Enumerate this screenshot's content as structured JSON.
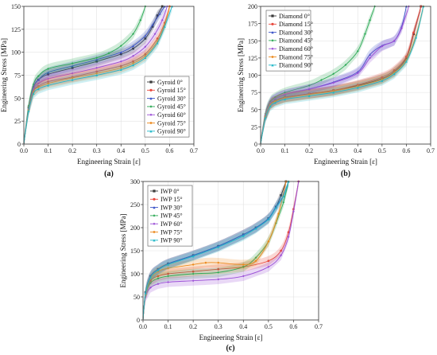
{
  "colors": [
    "#3a3a3a",
    "#e8473c",
    "#3c55c8",
    "#2eaa57",
    "#9b4fd6",
    "#ec8a1e",
    "#21b8c8"
  ],
  "chart_data": [
    {
      "type": "line",
      "panel_label": "(a)",
      "xlabel": "Engineering Strain [ε]",
      "ylabel": "Engineering Stress [MPa]",
      "xlim": [
        0,
        0.7
      ],
      "ylim": [
        0,
        150
      ],
      "xticks": [
        "0.0",
        "0.1",
        "0.2",
        "0.3",
        "0.4",
        "0.5",
        "0.6",
        "0.7"
      ],
      "yticks": [
        "0",
        "25",
        "50",
        "75",
        "100",
        "125",
        "150"
      ],
      "legend_position": "right",
      "series": [
        {
          "name": "Gyroid 0°",
          "x": [
            0,
            0.02,
            0.04,
            0.06,
            0.1,
            0.2,
            0.3,
            0.4,
            0.45,
            0.5,
            0.53,
            0.55,
            0.57
          ],
          "y": [
            0,
            40,
            62,
            70,
            76,
            83,
            90,
            98,
            104,
            115,
            128,
            140,
            150
          ]
        },
        {
          "name": "Gyroid 15°",
          "x": [
            0,
            0.02,
            0.04,
            0.06,
            0.1,
            0.2,
            0.3,
            0.4,
            0.45,
            0.5,
            0.55,
            0.58,
            0.6
          ],
          "y": [
            0,
            38,
            58,
            63,
            68,
            73,
            79,
            85,
            90,
            98,
            115,
            132,
            150
          ]
        },
        {
          "name": "Gyroid 30°",
          "x": [
            0,
            0.02,
            0.04,
            0.06,
            0.1,
            0.2,
            0.3,
            0.4,
            0.45,
            0.5,
            0.53,
            0.56,
            0.58
          ],
          "y": [
            0,
            40,
            62,
            70,
            78,
            85,
            92,
            100,
            107,
            118,
            130,
            142,
            150
          ]
        },
        {
          "name": "Gyroid 45°",
          "x": [
            0,
            0.02,
            0.04,
            0.06,
            0.1,
            0.2,
            0.3,
            0.35,
            0.4,
            0.45,
            0.48,
            0.5
          ],
          "y": [
            0,
            42,
            65,
            74,
            82,
            88,
            94,
            99,
            107,
            120,
            135,
            150
          ]
        },
        {
          "name": "Gyroid 60°",
          "x": [
            0,
            0.02,
            0.04,
            0.06,
            0.1,
            0.2,
            0.3,
            0.4,
            0.45,
            0.5,
            0.54,
            0.57,
            0.59
          ],
          "y": [
            0,
            38,
            60,
            66,
            71,
            77,
            83,
            90,
            96,
            106,
            120,
            135,
            150
          ]
        },
        {
          "name": "Gyroid 75°",
          "x": [
            0,
            0.02,
            0.04,
            0.06,
            0.1,
            0.2,
            0.3,
            0.4,
            0.45,
            0.5,
            0.55,
            0.58,
            0.6
          ],
          "y": [
            0,
            37,
            57,
            62,
            66,
            72,
            77,
            83,
            88,
            96,
            112,
            130,
            150
          ]
        },
        {
          "name": "Gyroid 90°",
          "x": [
            0,
            0.02,
            0.04,
            0.06,
            0.1,
            0.2,
            0.3,
            0.4,
            0.45,
            0.5,
            0.55,
            0.58,
            0.61
          ],
          "y": [
            0,
            36,
            55,
            60,
            64,
            70,
            75,
            81,
            86,
            94,
            110,
            128,
            150
          ]
        }
      ]
    },
    {
      "type": "line",
      "panel_label": "(b)",
      "xlabel": "Engineering Strain [ε]",
      "ylabel": "Engineering Stress [MPa]",
      "xlim": [
        0,
        0.7
      ],
      "ylim": [
        0,
        200
      ],
      "xticks": [
        "0.0",
        "0.1",
        "0.2",
        "0.3",
        "0.4",
        "0.5",
        "0.6",
        "0.7"
      ],
      "yticks": [
        "0",
        "25",
        "50",
        "75",
        "100",
        "125",
        "150",
        "175",
        "200"
      ],
      "legend_position": "top-left",
      "series": [
        {
          "name": "Diamond 0°",
          "x": [
            0,
            0.02,
            0.04,
            0.06,
            0.1,
            0.2,
            0.3,
            0.4,
            0.5,
            0.55,
            0.6,
            0.63,
            0.66
          ],
          "y": [
            0,
            40,
            58,
            63,
            68,
            73,
            78,
            85,
            95,
            105,
            125,
            160,
            200
          ]
        },
        {
          "name": "Diamond 15°",
          "x": [
            0,
            0.02,
            0.04,
            0.06,
            0.1,
            0.2,
            0.3,
            0.4,
            0.5,
            0.55,
            0.6,
            0.63,
            0.66
          ],
          "y": [
            0,
            40,
            58,
            63,
            68,
            73,
            78,
            86,
            97,
            107,
            127,
            162,
            200
          ]
        },
        {
          "name": "Diamond 30°",
          "x": [
            0,
            0.02,
            0.04,
            0.06,
            0.1,
            0.2,
            0.3,
            0.4,
            0.45,
            0.5,
            0.55,
            0.58,
            0.6
          ],
          "y": [
            0,
            42,
            60,
            66,
            72,
            80,
            90,
            105,
            130,
            143,
            150,
            170,
            200
          ]
        },
        {
          "name": "Diamond 45°",
          "x": [
            0,
            0.02,
            0.04,
            0.06,
            0.1,
            0.2,
            0.25,
            0.3,
            0.35,
            0.4,
            0.43,
            0.45,
            0.47
          ],
          "y": [
            0,
            44,
            62,
            68,
            75,
            85,
            93,
            102,
            115,
            135,
            160,
            180,
            200
          ]
        },
        {
          "name": "Diamond 60°",
          "x": [
            0,
            0.02,
            0.04,
            0.06,
            0.1,
            0.2,
            0.3,
            0.4,
            0.45,
            0.5,
            0.55,
            0.58,
            0.61
          ],
          "y": [
            0,
            42,
            60,
            66,
            72,
            80,
            89,
            103,
            125,
            142,
            150,
            168,
            200
          ]
        },
        {
          "name": "Diamond 75°",
          "x": [
            0,
            0.02,
            0.04,
            0.06,
            0.1,
            0.2,
            0.3,
            0.4,
            0.5,
            0.55,
            0.6,
            0.64,
            0.67
          ],
          "y": [
            0,
            40,
            57,
            62,
            67,
            72,
            77,
            84,
            94,
            104,
            122,
            158,
            200
          ]
        },
        {
          "name": "Diamond 90°",
          "x": [
            0,
            0.02,
            0.04,
            0.06,
            0.1,
            0.2,
            0.3,
            0.4,
            0.5,
            0.55,
            0.6,
            0.64,
            0.67
          ],
          "y": [
            0,
            38,
            55,
            60,
            65,
            70,
            75,
            82,
            92,
            102,
            120,
            155,
            200
          ]
        }
      ]
    },
    {
      "type": "line",
      "panel_label": "(c)",
      "xlabel": "Engineering Strain [ε]",
      "ylabel": "Engineering Stress [MPa]",
      "xlim": [
        0,
        0.7
      ],
      "ylim": [
        0,
        300
      ],
      "xticks": [
        "0.0",
        "0.1",
        "0.2",
        "0.3",
        "0.4",
        "0.5",
        "0.6",
        "0.7"
      ],
      "yticks": [
        "0",
        "50",
        "100",
        "150",
        "200",
        "250",
        "300"
      ],
      "legend_position": "top-left",
      "series": [
        {
          "name": "IWP 0°",
          "x": [
            0,
            0.01,
            0.03,
            0.06,
            0.1,
            0.2,
            0.3,
            0.4,
            0.45,
            0.5,
            0.53,
            0.55,
            0.57
          ],
          "y": [
            0,
            60,
            95,
            110,
            122,
            140,
            160,
            185,
            200,
            220,
            245,
            270,
            300
          ]
        },
        {
          "name": "IWP 15°",
          "x": [
            0,
            0.01,
            0.03,
            0.06,
            0.1,
            0.2,
            0.3,
            0.4,
            0.5,
            0.55,
            0.58,
            0.6,
            0.62
          ],
          "y": [
            0,
            55,
            85,
            95,
            100,
            105,
            110,
            115,
            128,
            150,
            190,
            240,
            300
          ]
        },
        {
          "name": "IWP 30°",
          "x": [
            0,
            0.01,
            0.03,
            0.06,
            0.1,
            0.2,
            0.3,
            0.4,
            0.45,
            0.5,
            0.53,
            0.56,
            0.58
          ],
          "y": [
            0,
            60,
            95,
            110,
            122,
            140,
            160,
            185,
            200,
            220,
            245,
            270,
            300
          ]
        },
        {
          "name": "IWP 45°",
          "x": [
            0,
            0.01,
            0.03,
            0.06,
            0.1,
            0.2,
            0.3,
            0.4,
            0.45,
            0.5,
            0.53,
            0.56,
            0.58
          ],
          "y": [
            0,
            55,
            80,
            90,
            95,
            100,
            103,
            115,
            135,
            170,
            210,
            255,
            300
          ]
        },
        {
          "name": "IWP 60°",
          "x": [
            0,
            0.01,
            0.03,
            0.06,
            0.1,
            0.2,
            0.3,
            0.4,
            0.5,
            0.55,
            0.58,
            0.6,
            0.62
          ],
          "y": [
            0,
            50,
            70,
            78,
            82,
            85,
            88,
            95,
            115,
            140,
            180,
            235,
            300
          ]
        },
        {
          "name": "IWP 75°",
          "x": [
            0,
            0.01,
            0.03,
            0.06,
            0.1,
            0.2,
            0.25,
            0.3,
            0.4,
            0.45,
            0.5,
            0.54,
            0.57
          ],
          "y": [
            0,
            55,
            90,
            105,
            112,
            120,
            124,
            124,
            120,
            128,
            170,
            230,
            300
          ]
        },
        {
          "name": "IWP 90°",
          "x": [
            0,
            0.01,
            0.03,
            0.06,
            0.1,
            0.2,
            0.3,
            0.4,
            0.45,
            0.5,
            0.53,
            0.56,
            0.58
          ],
          "y": [
            0,
            58,
            92,
            108,
            120,
            138,
            158,
            182,
            198,
            218,
            243,
            268,
            300
          ]
        }
      ]
    }
  ]
}
